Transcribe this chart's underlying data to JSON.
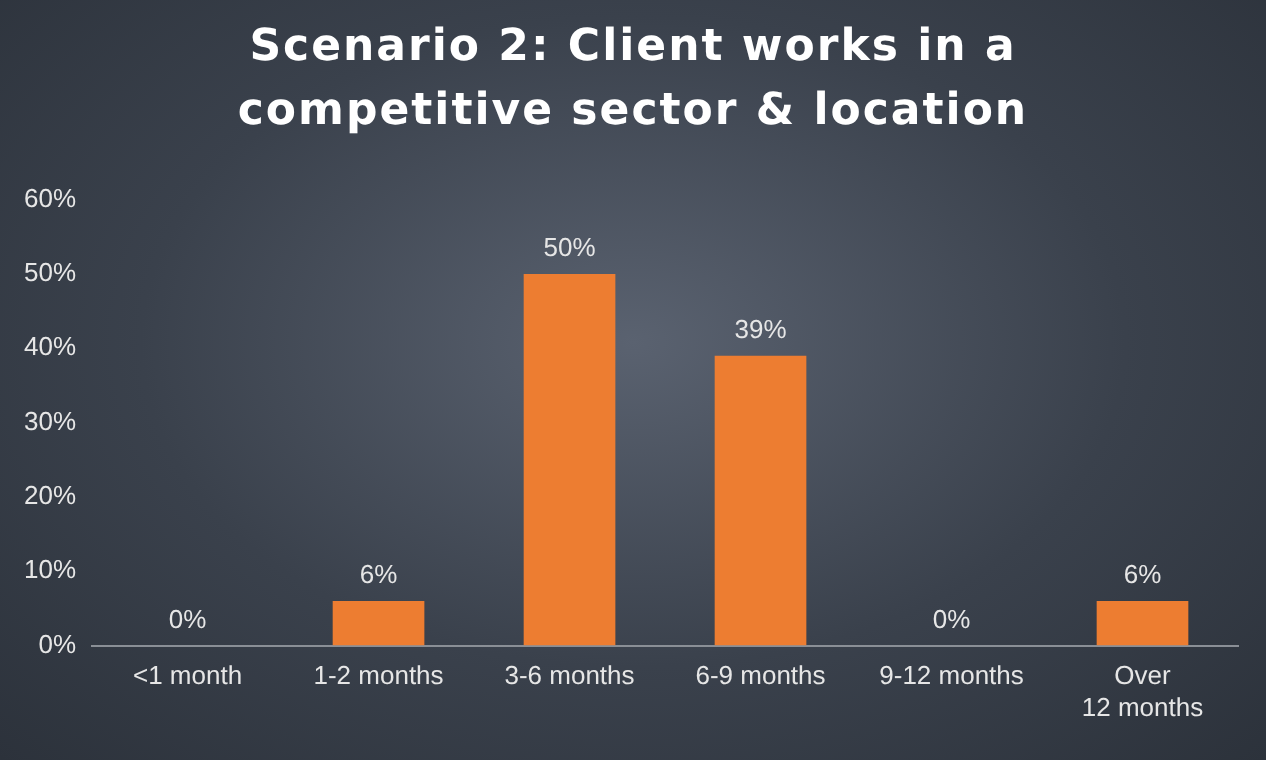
{
  "chart_data": {
    "type": "bar",
    "title": "Scenario 2: Client works in a competitive sector & location",
    "categories": [
      "<1 month",
      "1-2 months",
      "3-6 months",
      "6-9 months",
      "9-12 months",
      "Over 12 months"
    ],
    "values": [
      0,
      6,
      50,
      39,
      0,
      6
    ],
    "color": "#ed7d31",
    "value_labels": [
      "0%",
      "6%",
      "50%",
      "39%",
      "0%",
      "6%"
    ],
    "ylim": [
      0,
      60
    ],
    "yticks": [
      {
        "value": 0,
        "label": "0%"
      },
      {
        "value": 10,
        "label": "10%"
      },
      {
        "value": 20,
        "label": "20%"
      },
      {
        "value": 30,
        "label": "30%"
      },
      {
        "value": 40,
        "label": "40%"
      },
      {
        "value": 50,
        "label": "50%"
      },
      {
        "value": 60,
        "label": "60%"
      }
    ],
    "grid": false,
    "legend": false
  }
}
